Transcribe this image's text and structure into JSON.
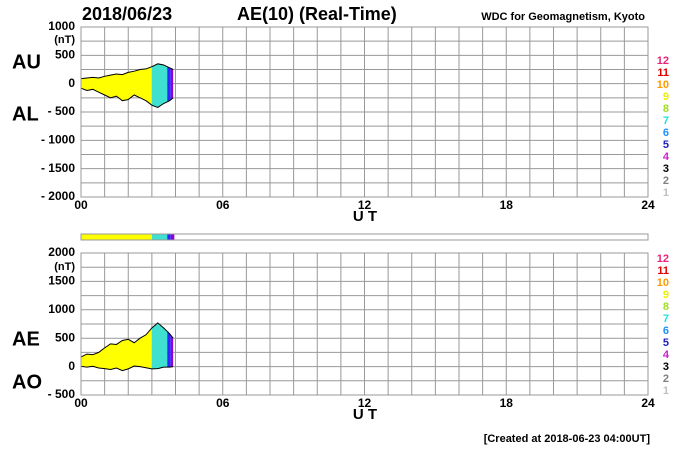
{
  "header": {
    "date": "2018/06/23",
    "title": "AE(10) (Real-Time)",
    "source": "WDC for Geomagnetism, Kyoto"
  },
  "chart_data": [
    {
      "type": "envelope",
      "y_unit": "(nT)",
      "x_label": "U T",
      "x": [
        0,
        0.25,
        0.5,
        0.75,
        1,
        1.25,
        1.5,
        1.75,
        2,
        2.25,
        2.5,
        2.75,
        3,
        3.25,
        3.5,
        3.75,
        3.9
      ],
      "series": [
        {
          "name": "AU",
          "color": "#000000",
          "values": [
            90,
            100,
            110,
            100,
            130,
            150,
            170,
            160,
            200,
            220,
            250,
            260,
            300,
            350,
            330,
            280,
            250
          ]
        },
        {
          "name": "AL",
          "color": "#000000",
          "values": [
            -80,
            -120,
            -100,
            -150,
            -200,
            -250,
            -220,
            -300,
            -280,
            -200,
            -250,
            -300,
            -380,
            -420,
            -350,
            -300,
            -250
          ]
        }
      ],
      "coverage": [
        {
          "start": 0,
          "end": 3.0,
          "color": "#ffff00"
        },
        {
          "start": 3.0,
          "end": 3.65,
          "color": "#40e0d0"
        },
        {
          "start": 3.65,
          "end": 3.8,
          "color": "#2a2aff"
        },
        {
          "start": 3.8,
          "end": 3.95,
          "color": "#9400d3"
        }
      ],
      "xlim": [
        0,
        24
      ],
      "xticks": [
        {
          "value": 0,
          "label": "00"
        },
        {
          "value": 6,
          "label": "06"
        },
        12,
        18,
        24
      ],
      "minor_xticks": [
        0,
        1,
        2,
        3,
        4,
        5,
        6,
        7,
        8,
        9,
        10,
        11,
        12,
        13,
        14,
        15,
        16,
        17,
        18,
        19,
        20,
        21,
        22,
        23,
        24
      ],
      "ylim": [
        -2000,
        1000
      ],
      "yticks": [
        1000,
        500,
        0,
        {
          "value": -500,
          "label": "- 500"
        },
        {
          "value": -1000,
          "label": "- 1000"
        },
        {
          "value": -1500,
          "label": "- 1500"
        },
        {
          "value": -2000,
          "label": "- 2000"
        }
      ],
      "minor_yticks": [
        -2000,
        -1750,
        -1500,
        -1250,
        -1000,
        -750,
        -500,
        -250,
        0,
        250,
        500,
        750,
        1000
      ],
      "legend": [
        {
          "label": "12",
          "color": "#e8257a"
        },
        {
          "label": "11",
          "color": "#e00000"
        },
        {
          "label": "10",
          "color": "#ff9900"
        },
        {
          "label": "9",
          "color": "#f0f000"
        },
        {
          "label": "8",
          "color": "#a0e020"
        },
        {
          "label": "7",
          "color": "#20e0e0"
        },
        {
          "label": "6",
          "color": "#1e90ff"
        },
        {
          "label": "5",
          "color": "#2020c0"
        },
        {
          "label": "4",
          "color": "#d020d0"
        },
        {
          "label": "3",
          "color": "#000000"
        },
        {
          "label": "2",
          "color": "#808080"
        },
        {
          "label": "1",
          "color": "#c0c0c0"
        }
      ]
    },
    {
      "type": "envelope",
      "y_unit": "(nT)",
      "x_label": "U T",
      "x": [
        0,
        0.25,
        0.5,
        0.75,
        1,
        1.25,
        1.5,
        1.75,
        2,
        2.25,
        2.5,
        2.75,
        3,
        3.25,
        3.5,
        3.75,
        3.9
      ],
      "series": [
        {
          "name": "AE",
          "color": "#000000",
          "values": [
            170,
            220,
            210,
            250,
            330,
            400,
            390,
            460,
            480,
            420,
            500,
            560,
            680,
            770,
            680,
            580,
            500
          ]
        },
        {
          "name": "AO",
          "color": "#000000",
          "values": [
            5,
            -10,
            5,
            -25,
            -35,
            -50,
            -25,
            -70,
            -40,
            10,
            0,
            -20,
            -40,
            -35,
            -10,
            -10,
            0
          ]
        }
      ],
      "coverage": [
        {
          "start": 0,
          "end": 3.0,
          "color": "#ffff00"
        },
        {
          "start": 3.0,
          "end": 3.65,
          "color": "#40e0d0"
        },
        {
          "start": 3.65,
          "end": 3.8,
          "color": "#2a2aff"
        },
        {
          "start": 3.8,
          "end": 3.95,
          "color": "#9400d3"
        }
      ],
      "xlim": [
        0,
        24
      ],
      "xticks": [
        {
          "value": 0,
          "label": "00"
        },
        {
          "value": 6,
          "label": "06"
        },
        12,
        18,
        24
      ],
      "minor_xticks": [
        0,
        1,
        2,
        3,
        4,
        5,
        6,
        7,
        8,
        9,
        10,
        11,
        12,
        13,
        14,
        15,
        16,
        17,
        18,
        19,
        20,
        21,
        22,
        23,
        24
      ],
      "ylim": [
        -500,
        2000
      ],
      "yticks": [
        2000,
        1500,
        1000,
        500,
        0,
        {
          "value": -500,
          "label": "- 500"
        }
      ],
      "minor_yticks": [
        -500,
        -250,
        0,
        250,
        500,
        750,
        1000,
        1250,
        1500,
        1750,
        2000
      ],
      "legend": [
        {
          "label": "12",
          "color": "#e8257a"
        },
        {
          "label": "11",
          "color": "#e00000"
        },
        {
          "label": "10",
          "color": "#ff9900"
        },
        {
          "label": "9",
          "color": "#f0f000"
        },
        {
          "label": "8",
          "color": "#a0e020"
        },
        {
          "label": "7",
          "color": "#20e0e0"
        },
        {
          "label": "6",
          "color": "#1e90ff"
        },
        {
          "label": "5",
          "color": "#2020c0"
        },
        {
          "label": "4",
          "color": "#d020d0"
        },
        {
          "label": "3",
          "color": "#000000"
        },
        {
          "label": "2",
          "color": "#808080"
        },
        {
          "label": "1",
          "color": "#c0c0c0"
        }
      ]
    }
  ],
  "footer": "[Created at 2018-06-23 04:00UT]"
}
